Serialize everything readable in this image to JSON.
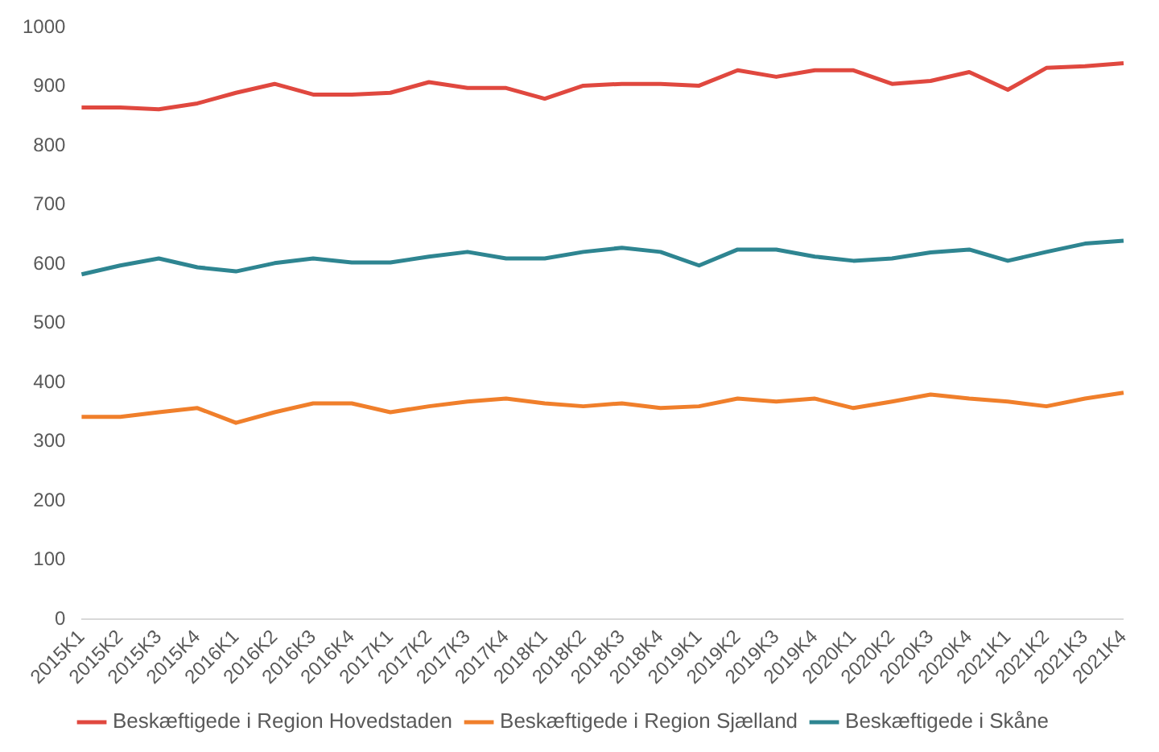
{
  "chart_data": {
    "type": "line",
    "categories": [
      "2015K1",
      "2015K2",
      "2015K3",
      "2015K4",
      "2016K1",
      "2016K2",
      "2016K3",
      "2016K4",
      "2017K1",
      "2017K2",
      "2017K3",
      "2017K4",
      "2018K1",
      "2018K2",
      "2018K3",
      "2018K4",
      "2019K1",
      "2019K2",
      "2019K3",
      "2019K4",
      "2020K1",
      "2020K2",
      "2020K3",
      "2020K4",
      "2021K1",
      "2021K2",
      "2021K3",
      "2021K4"
    ],
    "series": [
      {
        "name": "Beskæftigede i Region Hovedstaden",
        "color": "#e0483f",
        "values": [
          865,
          865,
          862,
          872,
          890,
          905,
          887,
          887,
          890,
          908,
          898,
          898,
          880,
          902,
          905,
          905,
          902,
          928,
          917,
          928,
          928,
          905,
          910,
          925,
          895,
          932,
          935,
          940
        ]
      },
      {
        "name": "Beskæftigede i Region Sjælland",
        "color": "#f07f2b",
        "values": [
          342,
          342,
          350,
          357,
          332,
          350,
          365,
          365,
          350,
          360,
          368,
          373,
          365,
          360,
          365,
          357,
          360,
          373,
          368,
          373,
          357,
          368,
          380,
          373,
          368,
          360,
          373,
          383
        ]
      },
      {
        "name": "Beskæftigede i Skåne",
        "color": "#2e8591",
        "values": [
          583,
          598,
          610,
          595,
          588,
          602,
          610,
          603,
          603,
          613,
          621,
          610,
          610,
          621,
          628,
          621,
          598,
          625,
          625,
          613,
          606,
          610,
          620,
          625,
          606,
          621,
          635,
          640
        ]
      }
    ],
    "ylim": [
      0,
      1000
    ],
    "yticks": [
      0,
      100,
      200,
      300,
      400,
      500,
      600,
      700,
      800,
      900,
      1000
    ],
    "grid": false,
    "legend": "bottom",
    "marker": "none",
    "line_style": "solid"
  }
}
